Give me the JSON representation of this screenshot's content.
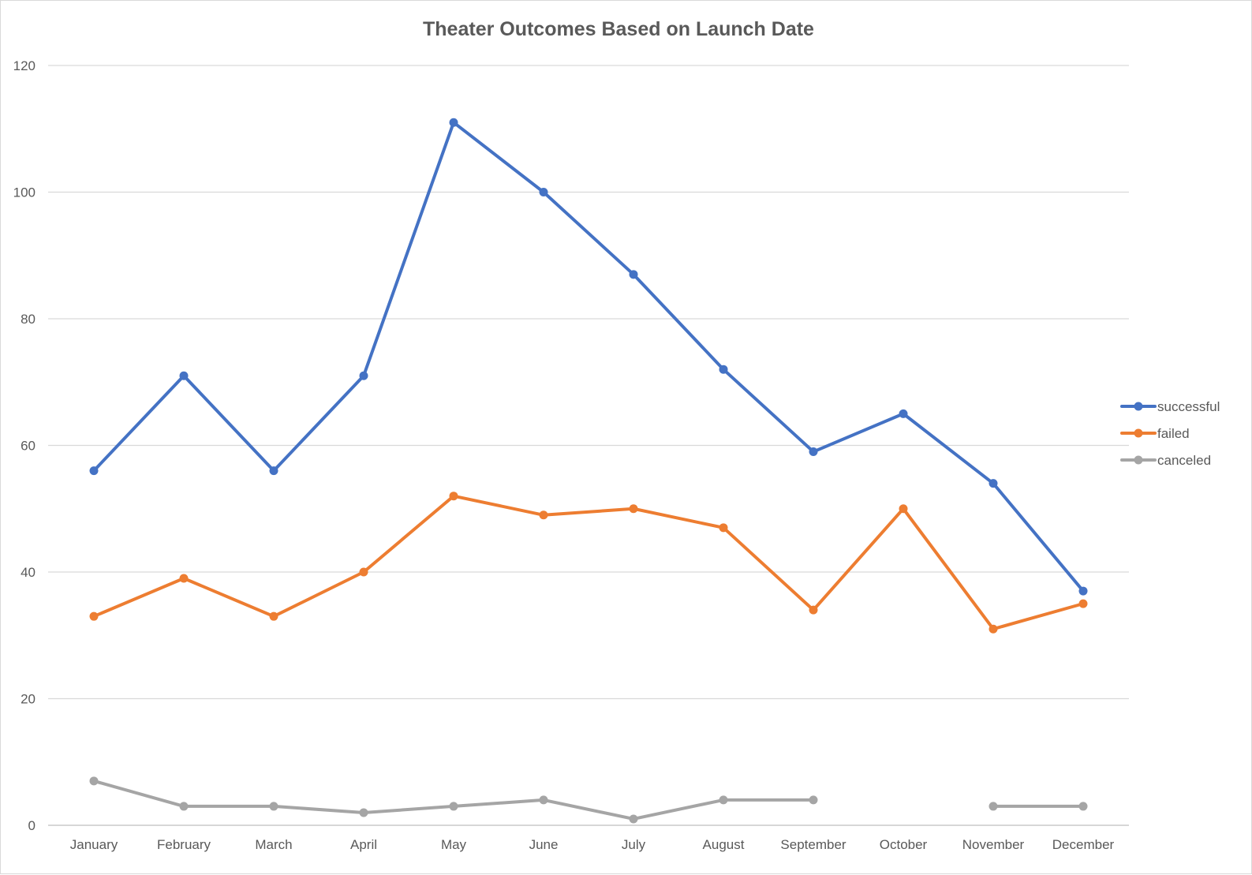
{
  "chart_data": {
    "type": "line",
    "title": "Theater Outcomes Based on Launch Date",
    "xlabel": "",
    "ylabel": "",
    "categories": [
      "January",
      "February",
      "March",
      "April",
      "May",
      "June",
      "July",
      "August",
      "September",
      "October",
      "November",
      "December"
    ],
    "yticks": [
      "0",
      "20",
      "40",
      "60",
      "80",
      "100",
      "120"
    ],
    "ylim": [
      0,
      120
    ],
    "grid": true,
    "legend_position": "right",
    "series": [
      {
        "name": "successful",
        "color": "#4472C4",
        "values": [
          56,
          71,
          56,
          71,
          111,
          100,
          87,
          72,
          59,
          65,
          54,
          37
        ]
      },
      {
        "name": "failed",
        "color": "#ED7D31",
        "values": [
          33,
          39,
          33,
          40,
          52,
          49,
          50,
          47,
          34,
          50,
          31,
          35
        ]
      },
      {
        "name": "canceled",
        "color": "#A5A5A5",
        "values": [
          7,
          3,
          3,
          2,
          3,
          4,
          1,
          4,
          4,
          null,
          3,
          3
        ]
      }
    ]
  }
}
